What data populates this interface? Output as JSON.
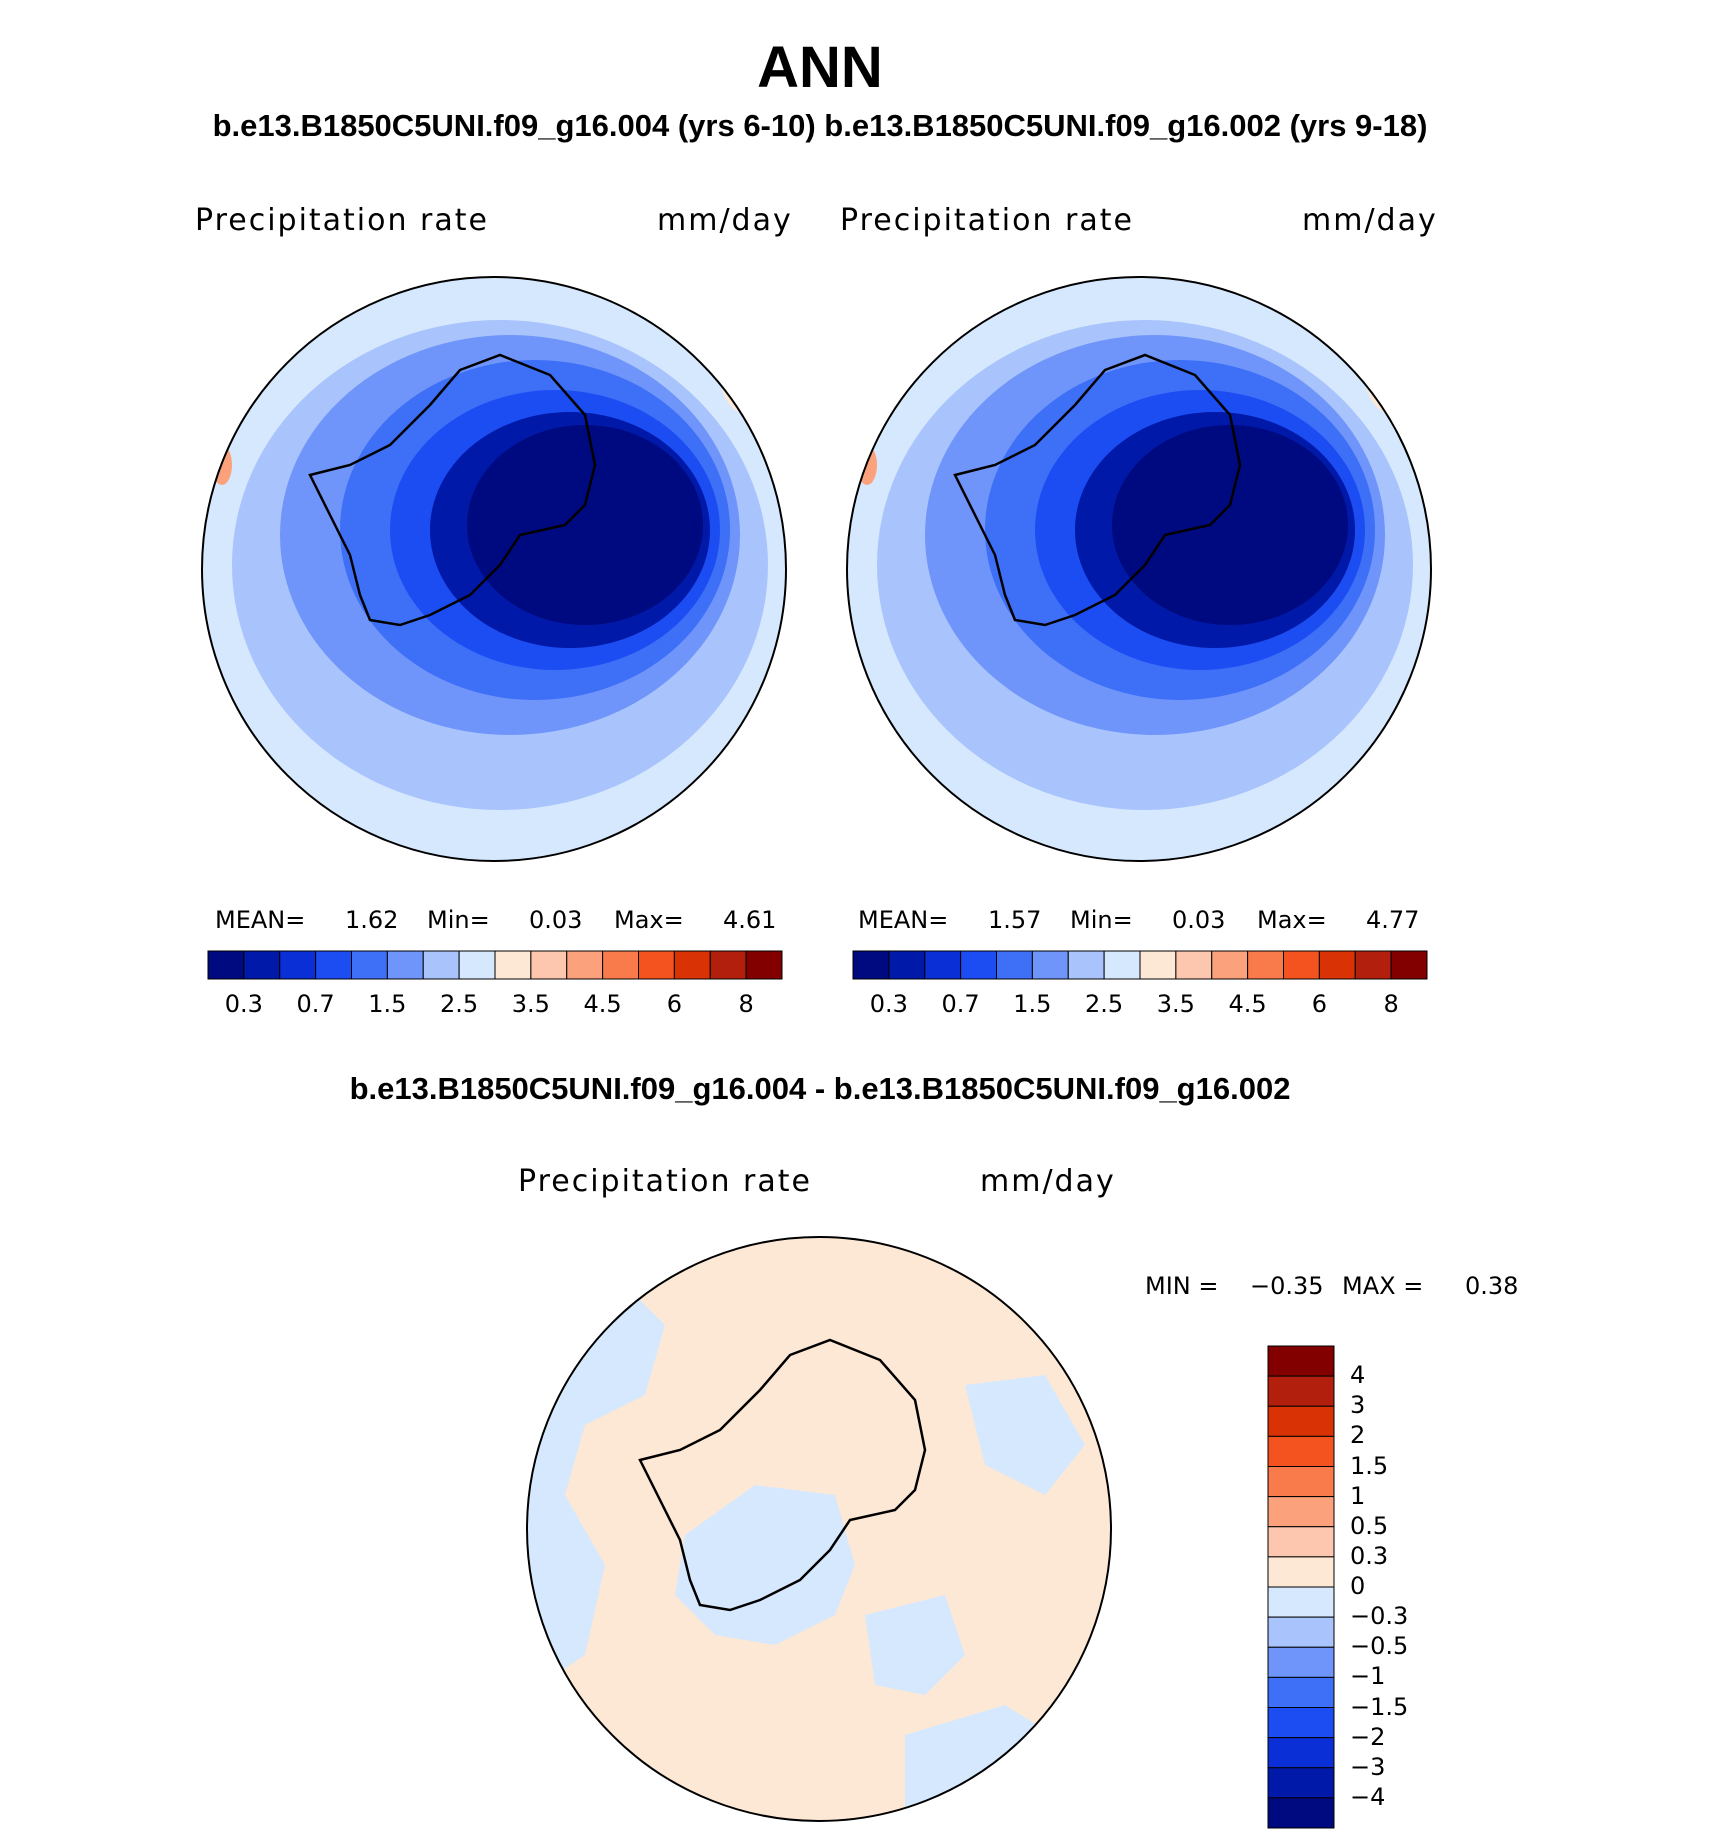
{
  "title": "ANN",
  "subtitle": "b.e13.B1850C5UNI.f09_g16.004 (yrs 6-10) b.e13.B1850C5UNI.f09_g16.002 (yrs 9-18)",
  "diff_subtitle": "b.e13.B1850C5UNI.f09_g16.004 - b.e13.B1850C5UNI.f09_g16.002",
  "panels": [
    {
      "field": "Precipitation  rate",
      "units": "mm/day",
      "mean_label": "MEAN=",
      "mean": "1.62",
      "min_label": "Min=",
      "min": "0.03",
      "max_label": "Max=",
      "max": "4.61"
    },
    {
      "field": "Precipitation  rate",
      "units": "mm/day",
      "mean_label": "MEAN=",
      "mean": "1.57",
      "min_label": "Min=",
      "min": "0.03",
      "max_label": "Max=",
      "max": "4.77"
    }
  ],
  "difference_panel": {
    "field": "Precipitation  rate",
    "units": "mm/day",
    "min_label": "MIN =",
    "min": "−0.35",
    "max_label": "MAX =",
    "max": "0.38"
  },
  "colorbar": {
    "ticks": [
      "0.3",
      "0.7",
      "1.5",
      "2.5",
      "3.5",
      "4.5",
      "6",
      "8"
    ],
    "colors": [
      "#000a80",
      "#0019a8",
      "#0a2fd6",
      "#1c4df2",
      "#3d6ff7",
      "#6f95fa",
      "#a9c4fc",
      "#d6e8fd",
      "#fde8d6",
      "#fcc7ae",
      "#fba27d",
      "#f97a4a",
      "#f45320",
      "#d93205",
      "#b21f0c",
      "#820000"
    ]
  },
  "diff_colorbar": {
    "ticks": [
      "4",
      "3",
      "2",
      "1.5",
      "1",
      "0.5",
      "0.3",
      "0",
      "−0.3",
      "−0.5",
      "−1",
      "−1.5",
      "−2",
      "−3",
      "−4"
    ],
    "colors": [
      "#820000",
      "#b21f0c",
      "#d93205",
      "#f45320",
      "#f97a4a",
      "#fba27d",
      "#fcc7ae",
      "#fde8d6",
      "#d6e8fd",
      "#a9c4fc",
      "#6f95fa",
      "#3d6ff7",
      "#1c4df2",
      "#0a2fd6",
      "#0019a8",
      "#000a80"
    ]
  },
  "map_colors": {
    "land_interior": "#000a80",
    "diff_pos": "#fde8d6",
    "diff_neg": "#d6e8fd",
    "coast": "#000000"
  }
}
